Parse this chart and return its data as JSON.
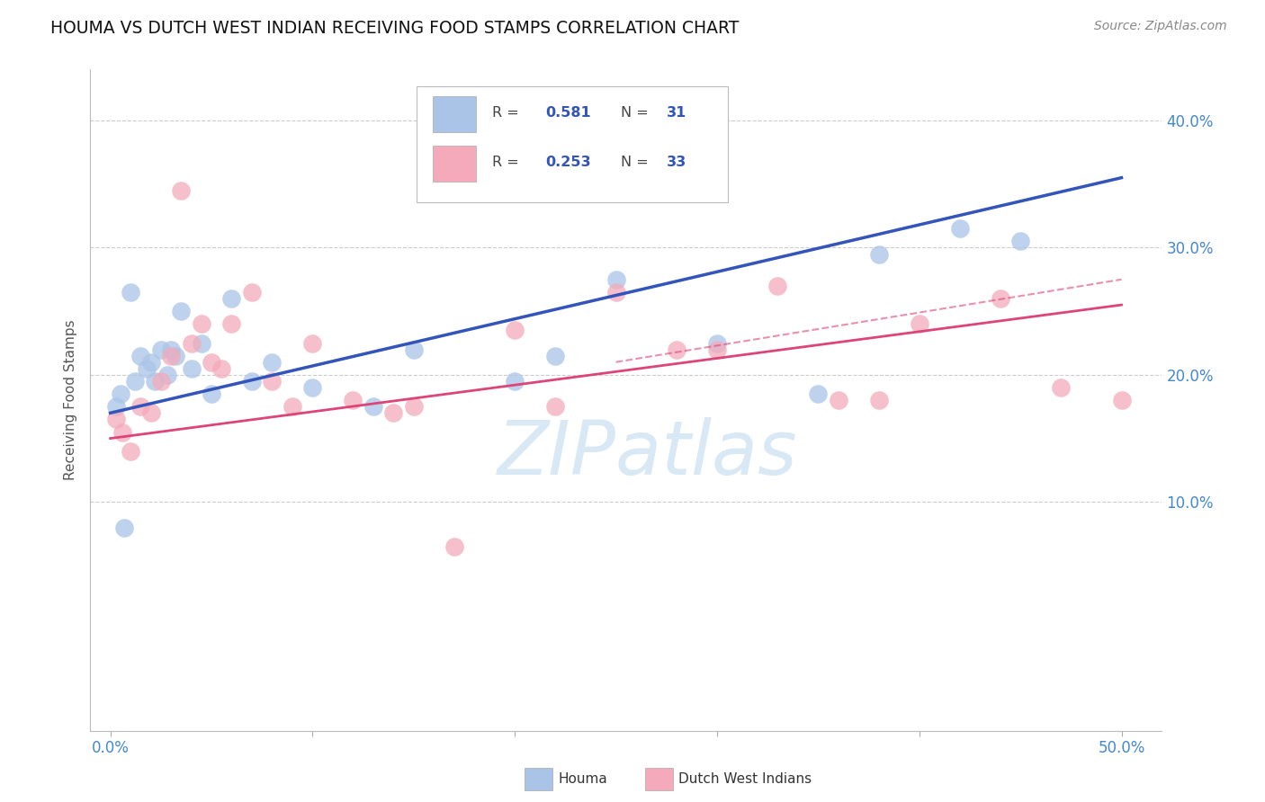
{
  "title": "HOUMA VS DUTCH WEST INDIAN RECEIVING FOOD STAMPS CORRELATION CHART",
  "source": "Source: ZipAtlas.com",
  "ylabel": "Receiving Food Stamps",
  "xlim": [
    -1.0,
    52.0
  ],
  "ylim": [
    -8.0,
    44.0
  ],
  "houma_color": "#aac4e8",
  "dutch_color": "#f4aabb",
  "houma_line_color": "#3355bb",
  "dutch_line_color": "#dd4477",
  "dutch_dash_color": "#dd4477",
  "houma_R": 0.581,
  "houma_N": 31,
  "dutch_R": 0.253,
  "dutch_N": 33,
  "legend_label_houma": "Houma",
  "legend_label_dutch": "Dutch West Indians",
  "background_color": "#ffffff",
  "grid_color": "#cccccc",
  "title_color": "#111111",
  "axis_label_color": "#555555",
  "tick_label_color": "#4488cc",
  "watermark_color": "#d8e8f5",
  "houma_x": [
    0.3,
    0.5,
    0.7,
    1.0,
    1.2,
    1.5,
    1.8,
    2.0,
    2.2,
    2.5,
    2.8,
    3.0,
    3.2,
    3.5,
    4.0,
    4.5,
    5.0,
    6.0,
    7.0,
    8.0,
    10.0,
    13.0,
    15.0,
    20.0,
    22.0,
    25.0,
    30.0,
    35.0,
    38.0,
    42.0,
    45.0
  ],
  "houma_y": [
    17.5,
    18.5,
    8.0,
    26.5,
    19.5,
    21.5,
    20.5,
    21.0,
    19.5,
    22.0,
    20.0,
    22.0,
    21.5,
    25.0,
    20.5,
    22.5,
    18.5,
    26.0,
    19.5,
    21.0,
    19.0,
    17.5,
    22.0,
    19.5,
    21.5,
    27.5,
    22.5,
    18.5,
    29.5,
    31.5,
    30.5
  ],
  "dutch_x": [
    0.3,
    0.6,
    1.0,
    1.5,
    2.0,
    2.5,
    3.0,
    3.5,
    4.0,
    4.5,
    5.0,
    5.5,
    6.0,
    7.0,
    8.0,
    9.0,
    10.0,
    12.0,
    14.0,
    15.0,
    17.0,
    20.0,
    22.0,
    25.0,
    28.0,
    30.0,
    33.0,
    36.0,
    38.0,
    40.0,
    44.0,
    47.0,
    50.0
  ],
  "dutch_y": [
    16.5,
    15.5,
    14.0,
    17.5,
    17.0,
    19.5,
    21.5,
    34.5,
    22.5,
    24.0,
    21.0,
    20.5,
    24.0,
    26.5,
    19.5,
    17.5,
    22.5,
    18.0,
    17.0,
    17.5,
    6.5,
    23.5,
    17.5,
    26.5,
    22.0,
    22.0,
    27.0,
    18.0,
    18.0,
    24.0,
    26.0,
    19.0,
    18.0
  ],
  "houma_line_x0": 0.0,
  "houma_line_x1": 50.0,
  "houma_line_y0": 17.0,
  "houma_line_y1": 35.5,
  "dutch_line_x0": 0.0,
  "dutch_line_x1": 50.0,
  "dutch_line_y0": 15.0,
  "dutch_line_y1": 25.5,
  "dutch_dash_x0": 25.0,
  "dutch_dash_x1": 50.0,
  "dutch_dash_y0": 21.0,
  "dutch_dash_y1": 27.5
}
